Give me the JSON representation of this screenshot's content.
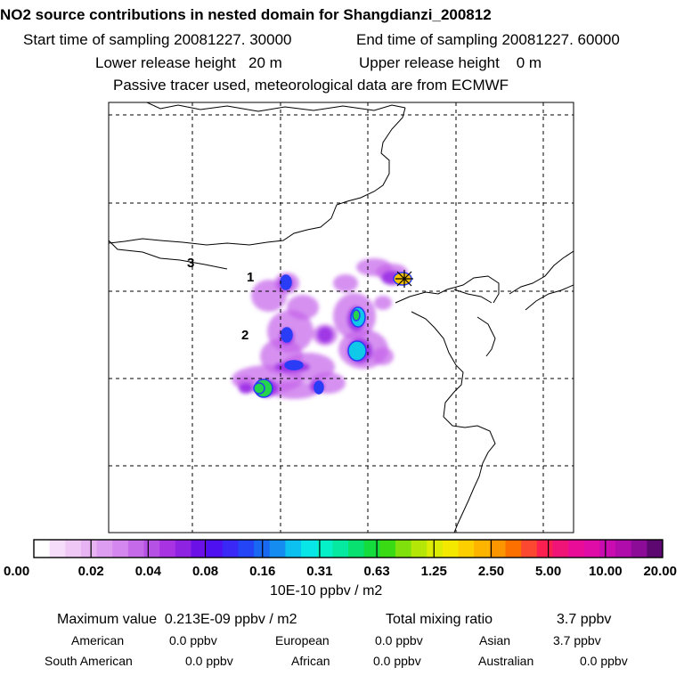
{
  "header": {
    "title": "NO2 source contributions in nested domain for Shangdianzi_200812",
    "start_time": "Start time of sampling 20081227. 30000",
    "end_time": "End time of sampling 20081227. 60000",
    "lower_release": "Lower release height   20 m",
    "upper_release": "Upper release height    0 m",
    "tracer_note": "Passive tracer used, meteorological data are from ECMWF"
  },
  "chart_data": {
    "type": "heatmap",
    "map_labels": [
      "1",
      "2",
      "3"
    ],
    "colorbar": {
      "ticks": [
        "0.00",
        "0.02",
        "0.04",
        "0.08",
        "0.16",
        "0.31",
        "0.63",
        "1.25",
        "2.50",
        "5.00",
        "10.00",
        "20.00"
      ],
      "colors": [
        "#ffffff",
        "#f6ddfa",
        "#efc8f6",
        "#e8b3f3",
        "#dd9df0",
        "#d487ee",
        "#c56ae8",
        "#b651e6",
        "#a733e3",
        "#8f23e2",
        "#6c10e8",
        "#4e10f0",
        "#3a28f6",
        "#2345f5",
        "#1868f2",
        "#148cf0",
        "#0cc0f0",
        "#08e6e8",
        "#05f0c8",
        "#05eaa0",
        "#08e070",
        "#14dc3c",
        "#3ada14",
        "#80e00c",
        "#b4e608",
        "#dcec04",
        "#f4e800",
        "#fcd000",
        "#fcb400",
        "#fc9600",
        "#fc7000",
        "#fc4830",
        "#fc2050",
        "#f01478",
        "#e80c98",
        "#e00ca8",
        "#c80cb0",
        "#b00cac",
        "#8c0c98",
        "#5c0870"
      ],
      "unit": "10E-10 ppbv / m2",
      "range": [
        0.0,
        20.0
      ]
    },
    "plumes": [
      {
        "value": 0.08,
        "color": "#2a3cf6"
      },
      {
        "value": 0.02,
        "color": "#c462ea"
      },
      {
        "value": 0.16,
        "color": "#10c8e8"
      },
      {
        "value": 0.63,
        "color": "#24d44c"
      },
      {
        "value": 0.04,
        "color": "#9a2ee6"
      },
      {
        "value": 2.5,
        "color": "#fcc400"
      }
    ]
  },
  "stats": {
    "max_value": "Maximum value  0.213E-09 ppbv / m2",
    "total_mixing": "Total mixing ratio",
    "total_mixing_value": "3.7 ppbv",
    "regions": [
      {
        "name": "American",
        "value": "0.0 ppbv"
      },
      {
        "name": "European",
        "value": "0.0 ppbv"
      },
      {
        "name": "Asian",
        "value": "3.7 ppbv"
      },
      {
        "name": "South American",
        "value": "0.0 ppbv"
      },
      {
        "name": "African",
        "value": "0.0 ppbv"
      },
      {
        "name": "Australian",
        "value": "0.0 ppbv"
      }
    ]
  }
}
